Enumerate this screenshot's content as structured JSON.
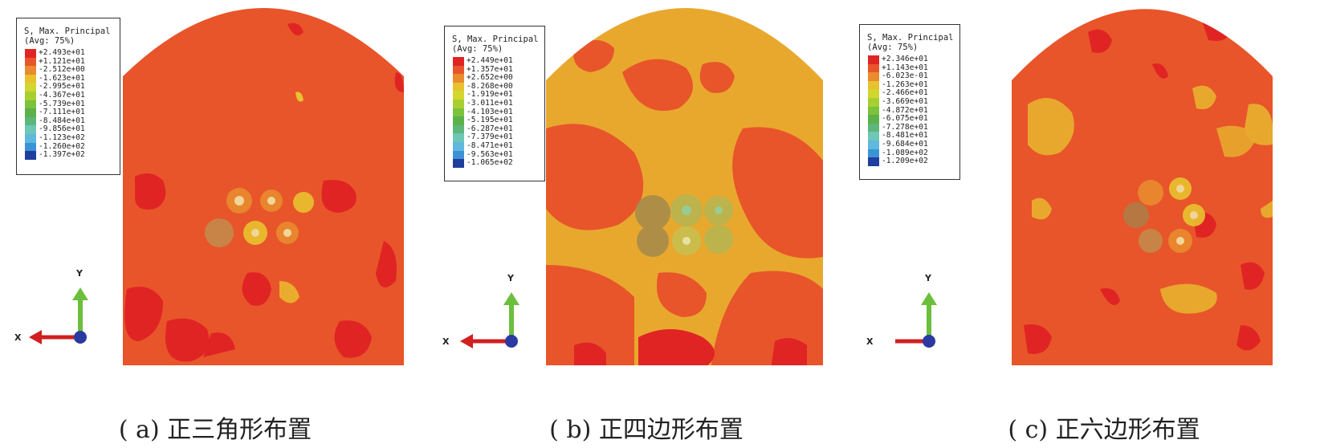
{
  "legend_title": [
    "S, Max. Principal",
    "(Avg: 75%)"
  ],
  "legend_colors": [
    "#e02424",
    "#e8552a",
    "#e98b2e",
    "#e8c22e",
    "#d2d62e",
    "#a8cf32",
    "#7cc23a",
    "#5cb14b",
    "#5db77a",
    "#6ec6b4",
    "#5fb8de",
    "#3b93d6",
    "#2a6ec4",
    "#1f3f9e"
  ],
  "axis": {
    "x": "X",
    "y": "Y"
  },
  "panels": [
    {
      "caption": "( a)  正三角形布置",
      "legend_values": [
        "+2.493e+01",
        "+1.121e+01",
        "-2.512e+00",
        "-1.623e+01",
        "-2.995e+01",
        "-4.367e+01",
        "-5.739e+01",
        "-7.111e+01",
        "-8.484e+01",
        "-9.856e+01",
        "-1.123e+02",
        "-1.260e+02",
        "-1.397e+02"
      ]
    },
    {
      "caption": "( b)  正四边形布置",
      "legend_values": [
        "+2.449e+01",
        "+1.357e+01",
        "+2.652e+00",
        "-8.268e+00",
        "-1.919e+01",
        "-3.011e+01",
        "-4.103e+01",
        "-5.195e+01",
        "-6.287e+01",
        "-7.379e+01",
        "-8.471e+01",
        "-9.563e+01",
        "-1.065e+02"
      ]
    },
    {
      "caption": "( c)  正六边形布置",
      "legend_values": [
        "+2.346e+01",
        "+1.143e+01",
        "-6.023e-01",
        "-1.263e+01",
        "-2.466e+01",
        "-3.669e+01",
        "-4.872e+01",
        "-6.075e+01",
        "-7.278e+01",
        "-8.481e+01",
        "-9.684e+01",
        "-1.089e+02",
        "-1.209e+02"
      ]
    }
  ]
}
